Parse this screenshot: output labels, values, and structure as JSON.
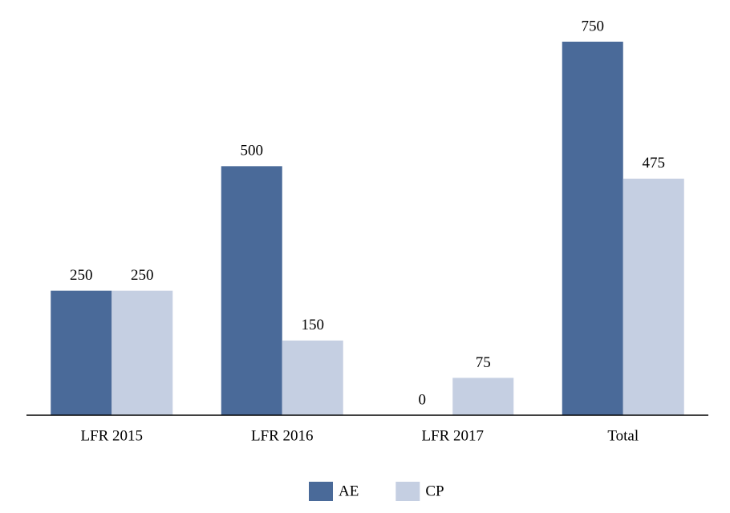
{
  "chart_data": {
    "type": "bar",
    "categories": [
      "LFR 2015",
      "LFR 2016",
      "LFR 2017",
      "Total"
    ],
    "series": [
      {
        "name": "AE",
        "color": "#4a6a99",
        "values": [
          250,
          500,
          0,
          750
        ]
      },
      {
        "name": "CP",
        "color": "#c5cfe2",
        "values": [
          250,
          150,
          75,
          475
        ]
      }
    ],
    "legend": "bottom"
  }
}
